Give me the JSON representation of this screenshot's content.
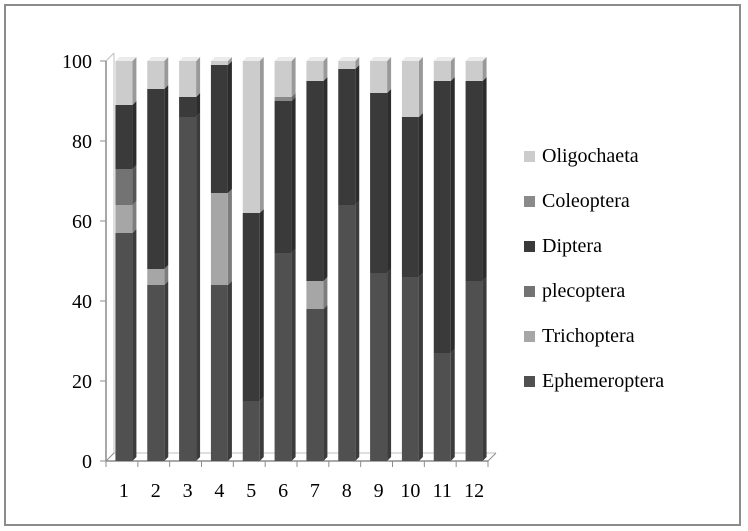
{
  "chart_data": {
    "type": "bar",
    "stacked": true,
    "title": "",
    "xlabel": "",
    "ylabel": "",
    "ylim": [
      0,
      100
    ],
    "yticks": [
      0,
      20,
      40,
      60,
      80,
      100
    ],
    "categories": [
      "1",
      "2",
      "3",
      "4",
      "5",
      "6",
      "7",
      "8",
      "9",
      "10",
      "11",
      "12"
    ],
    "legend_position": "right",
    "series": [
      {
        "name": "Ephemeroptera",
        "color": "#505050",
        "values": [
          57,
          44,
          86,
          44,
          15,
          52,
          38,
          64,
          47,
          46,
          27,
          45
        ]
      },
      {
        "name": "Trichoptera",
        "color": "#a6a6a6",
        "values": [
          7,
          4,
          0,
          23,
          0,
          0,
          7,
          0,
          0,
          0,
          0,
          0
        ]
      },
      {
        "name": "plecoptera",
        "color": "#737373",
        "values": [
          9,
          0,
          0,
          0,
          0,
          0,
          0,
          0,
          0,
          0,
          0,
          0
        ]
      },
      {
        "name": "Diptera",
        "color": "#3a3a3a",
        "values": [
          16,
          45,
          5,
          32,
          47,
          38,
          50,
          34,
          45,
          40,
          68,
          50
        ]
      },
      {
        "name": "Coleoptera",
        "color": "#8a8a8a",
        "values": [
          0,
          0,
          0,
          0,
          0,
          1,
          0,
          0,
          0,
          0,
          0,
          0
        ]
      },
      {
        "name": "Oligochaeta",
        "color": "#cccccc",
        "values": [
          11,
          7,
          9,
          1,
          38,
          9,
          5,
          2,
          8,
          14,
          5,
          5
        ]
      }
    ]
  }
}
